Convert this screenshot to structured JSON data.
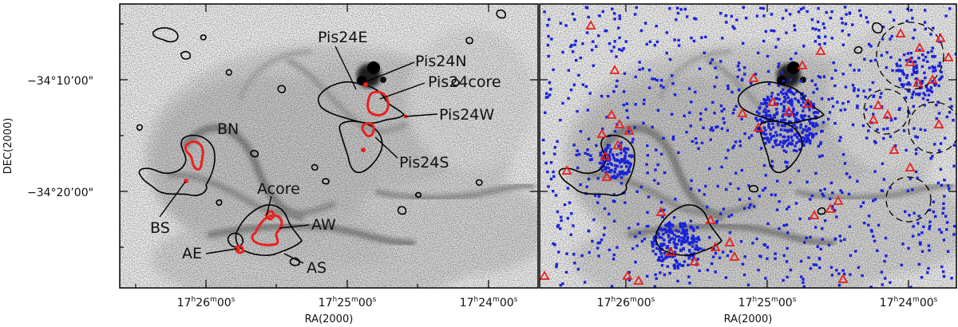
{
  "figure": {
    "y_axis_title": "DEC(2000)",
    "x_axis_title": "RA(2000)",
    "dec_ticks": [
      {
        "deg": "−34",
        "min": "10",
        "sec": "00",
        "unit_sec": "\"",
        "label": "−34°10’00\""
      },
      {
        "deg": "−34",
        "min": "20",
        "sec": "00",
        "unit_sec": "\"",
        "label": "−34°20’00\""
      }
    ],
    "ra_ticks": [
      {
        "h": "17",
        "m": "26",
        "s": "00"
      },
      {
        "h": "17",
        "m": "25",
        "s": "00"
      },
      {
        "h": "17",
        "m": "24",
        "s": "00"
      }
    ],
    "region_labels": [
      "Pis24E",
      "Pis24N",
      "Pis24core",
      "Pis24W",
      "Pis24S",
      "BN",
      "BS",
      "Acore",
      "AW",
      "AE",
      "AS"
    ]
  },
  "colors": {
    "contour": "#000000",
    "core_contour": "#e8211f",
    "stars": "#1a22d8",
    "triangles": "#e8211f"
  }
}
